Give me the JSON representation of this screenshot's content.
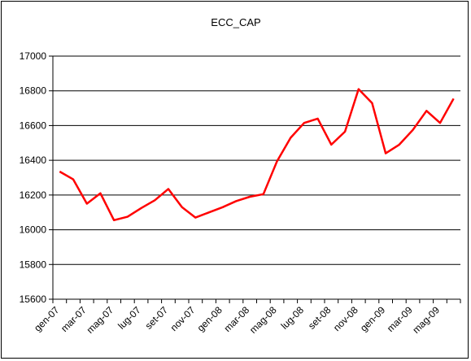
{
  "chart_data": {
    "type": "line",
    "title": "ECC_CAP",
    "xlabel": "",
    "ylabel": "",
    "ylim": [
      15600,
      17000
    ],
    "yticks": [
      15600,
      15800,
      16000,
      16200,
      16400,
      16600,
      16800,
      17000
    ],
    "ytick_labels": [
      "15600",
      "15800",
      "16000",
      "16200",
      "16400",
      "16600",
      "16800",
      "17000"
    ],
    "grid": "horizontal",
    "legend": "none",
    "x": [
      "gen-07",
      "feb-07",
      "mar-07",
      "apr-07",
      "mag-07",
      "giu-07",
      "lug-07",
      "ago-07",
      "set-07",
      "ott-07",
      "nov-07",
      "dic-07",
      "gen-08",
      "feb-08",
      "mar-08",
      "apr-08",
      "mag-08",
      "giu-08",
      "lug-08",
      "ago-08",
      "set-08",
      "ott-08",
      "nov-08",
      "dic-08",
      "gen-09",
      "feb-09",
      "mar-09",
      "apr-09",
      "mag-09",
      "giu-09"
    ],
    "xtick_labels": [
      "gen-07",
      "mar-07",
      "mag-07",
      "lug-07",
      "set-07",
      "nov-07",
      "gen-08",
      "mar-08",
      "mag-08",
      "lug-08",
      "set-08",
      "nov-08",
      "gen-09",
      "mar-09",
      "mag-09"
    ],
    "series": [
      {
        "color": "#ff0000",
        "values": [
          16335,
          16290,
          16150,
          16210,
          16055,
          16075,
          16125,
          16170,
          16235,
          16130,
          16070,
          16100,
          16130,
          16165,
          16190,
          16205,
          16395,
          16530,
          16615,
          16640,
          16490,
          16565,
          16810,
          16730,
          16440,
          16490,
          16575,
          16685,
          16615,
          16755
        ]
      }
    ]
  }
}
